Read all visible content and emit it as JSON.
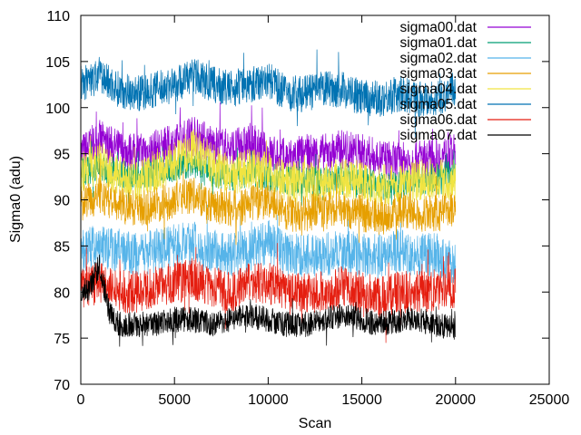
{
  "chart_data": {
    "type": "line",
    "title": "",
    "xlabel": "Scan",
    "ylabel": "Sigma0 (adu)",
    "xlim": [
      0,
      25000
    ],
    "ylim": [
      70,
      110
    ],
    "xticks": [
      0,
      5000,
      10000,
      15000,
      20000,
      25000
    ],
    "yticks": [
      70,
      75,
      80,
      85,
      90,
      95,
      100,
      105,
      110
    ],
    "grid": false,
    "legend_position": "top-right",
    "series": [
      {
        "name": "sigma00.dat",
        "color": "#9400d3",
        "x": [
          0,
          1000,
          2000,
          3000,
          4000,
          5000,
          6000,
          7000,
          8000,
          9000,
          10000,
          11000,
          12000,
          13000,
          14000,
          15000,
          16000,
          17000,
          18000,
          19000,
          20000
        ],
        "y": [
          95,
          96.5,
          95.5,
          95,
          95.5,
          96,
          97,
          96,
          95.5,
          96,
          95,
          94.5,
          95,
          95,
          95.5,
          95,
          94.5,
          94,
          94.5,
          94.5,
          95
        ]
      },
      {
        "name": "sigma01.dat",
        "color": "#009e73",
        "x": [
          0,
          1000,
          2000,
          3000,
          4000,
          5000,
          6000,
          7000,
          8000,
          9000,
          10000,
          11000,
          12000,
          13000,
          14000,
          15000,
          16000,
          17000,
          18000,
          19000,
          20000
        ],
        "y": [
          93,
          93.5,
          93,
          92.5,
          93,
          93.5,
          94,
          93,
          92.5,
          93,
          92.5,
          92,
          92,
          92,
          92.5,
          92,
          91.5,
          91.5,
          92,
          92.5,
          93
        ]
      },
      {
        "name": "sigma02.dat",
        "color": "#56b4e9",
        "x": [
          0,
          1000,
          2000,
          3000,
          4000,
          5000,
          6000,
          7000,
          8000,
          9000,
          10000,
          11000,
          12000,
          13000,
          14000,
          15000,
          16000,
          17000,
          18000,
          19000,
          20000
        ],
        "y": [
          84.5,
          85,
          84.5,
          84,
          84.5,
          85,
          85.5,
          84.5,
          84,
          84.5,
          85.5,
          84,
          84,
          84,
          84.5,
          84,
          84,
          84.5,
          84,
          84,
          83
        ]
      },
      {
        "name": "sigma03.dat",
        "color": "#e69f00",
        "x": [
          0,
          1000,
          2000,
          3000,
          4000,
          5000,
          6000,
          7000,
          8000,
          9000,
          10000,
          11000,
          12000,
          13000,
          14000,
          15000,
          16000,
          17000,
          18000,
          19000,
          20000
        ],
        "y": [
          89.5,
          90.5,
          89.5,
          89,
          89.5,
          90,
          90.5,
          89.5,
          89,
          89.5,
          90,
          88.5,
          88.5,
          89,
          89,
          88.5,
          88,
          89,
          88.5,
          88.5,
          89
        ]
      },
      {
        "name": "sigma04.dat",
        "color": "#f0e442",
        "x": [
          0,
          1000,
          2000,
          3000,
          4000,
          5000,
          6000,
          7000,
          8000,
          9000,
          10000,
          11000,
          12000,
          13000,
          14000,
          15000,
          16000,
          17000,
          18000,
          19000,
          20000
        ],
        "y": [
          93,
          94,
          92.5,
          92,
          93,
          94,
          95.5,
          94,
          92.5,
          93.5,
          93,
          92,
          92,
          92,
          92.5,
          92,
          91.5,
          92,
          92,
          92.5,
          92
        ]
      },
      {
        "name": "sigma05.dat",
        "color": "#0072b2",
        "x": [
          0,
          1000,
          2000,
          3000,
          4000,
          5000,
          6000,
          7000,
          8000,
          9000,
          10000,
          11000,
          12000,
          13000,
          14000,
          15000,
          16000,
          17000,
          18000,
          19000,
          20000
        ],
        "y": [
          102.5,
          103.5,
          102,
          101.5,
          102,
          102.5,
          103.5,
          102.5,
          102,
          102.5,
          103,
          101.5,
          101.5,
          102,
          102,
          101,
          101,
          101.5,
          101,
          101,
          102
        ]
      },
      {
        "name": "sigma06.dat",
        "color": "#e51e10",
        "x": [
          0,
          1000,
          2000,
          3000,
          4000,
          5000,
          6000,
          7000,
          8000,
          9000,
          10000,
          11000,
          12000,
          13000,
          14000,
          15000,
          16000,
          17000,
          18000,
          19000,
          20000
        ],
        "y": [
          80.5,
          81,
          80,
          80,
          80.5,
          81,
          81.5,
          80.5,
          80,
          81,
          81,
          80,
          80,
          80,
          80.5,
          80,
          79.5,
          80,
          80,
          80,
          80.5
        ]
      },
      {
        "name": "sigma07.dat",
        "color": "#000000",
        "x": [
          0,
          500,
          1000,
          1500,
          2000,
          3000,
          4000,
          5000,
          6000,
          7000,
          8000,
          9000,
          10000,
          11000,
          12000,
          13000,
          14000,
          15000,
          16000,
          17000,
          18000,
          19000,
          20000
        ],
        "y": [
          80,
          80.5,
          83,
          78,
          76.5,
          76.5,
          76.5,
          77,
          77,
          76.5,
          77,
          77.5,
          77,
          76.5,
          76.5,
          77,
          77.5,
          77,
          76.5,
          77,
          77,
          76.5,
          76
        ]
      }
    ]
  }
}
